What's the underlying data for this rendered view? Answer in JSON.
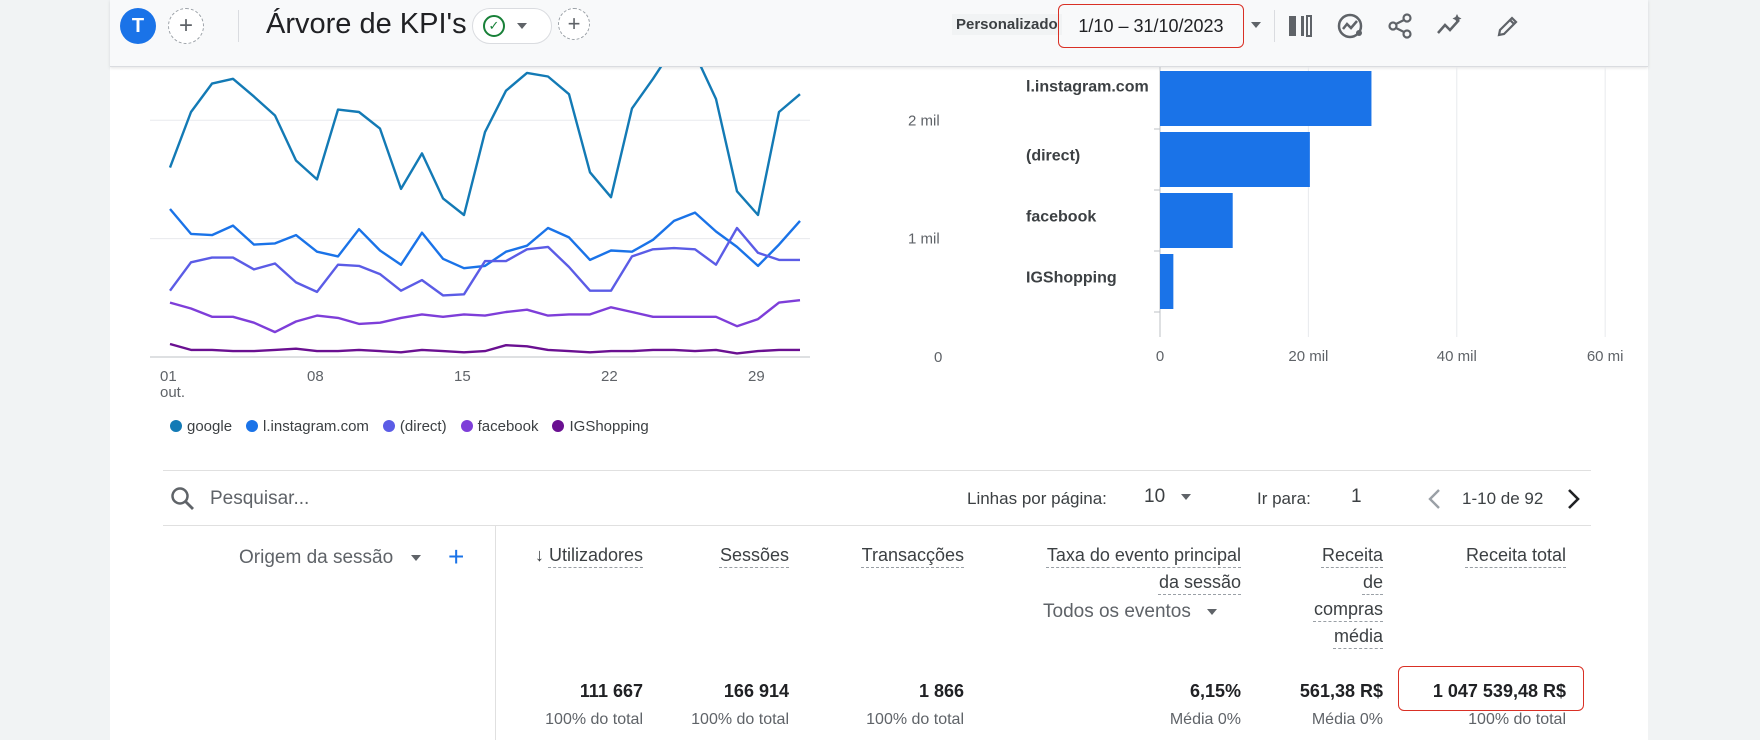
{
  "header": {
    "avatar_letter": "T",
    "report_title": "Árvore de KPI's",
    "date_label": "Personalizado",
    "date_range": "1/10 – 31/10/2023"
  },
  "colors": {
    "google": "#137ab5",
    "instagram": "#1a73e8",
    "direct": "#5b5ce6",
    "facebook": "#7e3ed9",
    "igshopping": "#6a1091",
    "bar": "#1a73e8",
    "highlight": "#d93025"
  },
  "icons": [
    "add-icon",
    "check-circle-icon",
    "compare-icon",
    "insights-icon",
    "share-icon",
    "sparkline-icon",
    "edit-icon",
    "search-icon",
    "sort-down-icon",
    "chevron-left-icon",
    "chevron-right-icon"
  ],
  "chart_data": [
    {
      "type": "line",
      "x": [
        1,
        2,
        3,
        4,
        5,
        6,
        7,
        8,
        9,
        10,
        11,
        12,
        13,
        14,
        15,
        16,
        17,
        18,
        19,
        20,
        21,
        22,
        23,
        24,
        25,
        26,
        27,
        28,
        29,
        30,
        31
      ],
      "x_ticks": [
        {
          "x": 1,
          "label": "01",
          "sub": "out."
        },
        {
          "x": 8,
          "label": "08"
        },
        {
          "x": 15,
          "label": "15"
        },
        {
          "x": 22,
          "label": "22"
        },
        {
          "x": 29,
          "label": "29"
        }
      ],
      "y_ticks": [
        {
          "value": 0,
          "label": "0"
        },
        {
          "value": 1000,
          "label": "1 mil"
        },
        {
          "value": 2000,
          "label": "2 mil"
        }
      ],
      "ylim": [
        0,
        2450
      ],
      "grid": true,
      "legend_position": "bottom-left",
      "series": [
        {
          "name": "google",
          "color_key": "google",
          "values": [
            1600,
            2070,
            2310,
            2350,
            2200,
            2040,
            1660,
            1500,
            2090,
            2070,
            1930,
            1420,
            1720,
            1340,
            1200,
            1900,
            2250,
            2400,
            2370,
            2220,
            1560,
            1350,
            2100,
            2350,
            2620,
            2560,
            2180,
            1400,
            1200,
            2070,
            2220
          ]
        },
        {
          "name": "l.instagram.com",
          "color_key": "instagram",
          "values": [
            1250,
            1040,
            1030,
            1110,
            950,
            960,
            1030,
            890,
            850,
            1080,
            900,
            780,
            1050,
            830,
            750,
            770,
            890,
            940,
            1090,
            1010,
            820,
            900,
            890,
            990,
            1150,
            1220,
            1060,
            930,
            770,
            950,
            1150
          ]
        },
        {
          "name": "(direct)",
          "color_key": "direct",
          "values": [
            560,
            800,
            840,
            840,
            740,
            790,
            630,
            550,
            780,
            770,
            700,
            560,
            650,
            520,
            530,
            810,
            810,
            910,
            930,
            760,
            560,
            560,
            850,
            910,
            920,
            910,
            780,
            1090,
            880,
            820,
            820
          ]
        },
        {
          "name": "facebook",
          "color_key": "facebook",
          "values": [
            460,
            410,
            340,
            340,
            290,
            210,
            300,
            350,
            330,
            280,
            290,
            330,
            360,
            340,
            360,
            350,
            380,
            400,
            350,
            360,
            360,
            420,
            380,
            340,
            340,
            340,
            340,
            260,
            320,
            460,
            480
          ]
        },
        {
          "name": "IGShopping",
          "color_key": "igshopping",
          "values": [
            110,
            60,
            60,
            50,
            50,
            60,
            70,
            50,
            50,
            60,
            50,
            40,
            60,
            50,
            40,
            50,
            100,
            90,
            60,
            50,
            40,
            50,
            50,
            60,
            60,
            50,
            60,
            30,
            50,
            60,
            60
          ]
        }
      ]
    },
    {
      "type": "bar",
      "orientation": "horizontal",
      "categories": [
        "l.instagram.com",
        "(direct)",
        "facebook",
        "IGShopping"
      ],
      "values": [
        28500,
        20200,
        9800,
        1800
      ],
      "xlim": [
        0,
        62000
      ],
      "x_ticks": [
        {
          "value": 0,
          "label": "0"
        },
        {
          "value": 20000,
          "label": "20 mil"
        },
        {
          "value": 40000,
          "label": "40 mil"
        },
        {
          "value": 60000,
          "label": "60 mi"
        }
      ],
      "grid": true
    }
  ],
  "table": {
    "search_placeholder": "Pesquisar...",
    "rows_per_page_label": "Linhas por página:",
    "rows_per_page_value": "10",
    "goto_label": "Ir para:",
    "goto_value": "1",
    "pagination": "1-10 de 92",
    "dimension_header": "Origem da sessão",
    "columns": [
      {
        "lines": [
          "Utilizadores"
        ],
        "total": "111 667",
        "sub": "100% do total",
        "sorted": true
      },
      {
        "lines": [
          "Sessões"
        ],
        "total": "166 914",
        "sub": "100% do total"
      },
      {
        "lines": [
          "Transacções"
        ],
        "total": "1 866",
        "sub": "100% do total"
      },
      {
        "lines": [
          "Taxa do evento principal",
          "da sessão"
        ],
        "total": "6,15%",
        "sub": "Média 0%"
      },
      {
        "lines": [
          "Receita",
          "de",
          "compras",
          "média"
        ],
        "total": "561,38 R$",
        "sub": "Média 0%"
      },
      {
        "lines": [
          "Receita total"
        ],
        "total": "1 047 539,48 R$",
        "sub": "100% do total"
      }
    ],
    "events_dropdown": "Todos os eventos"
  }
}
